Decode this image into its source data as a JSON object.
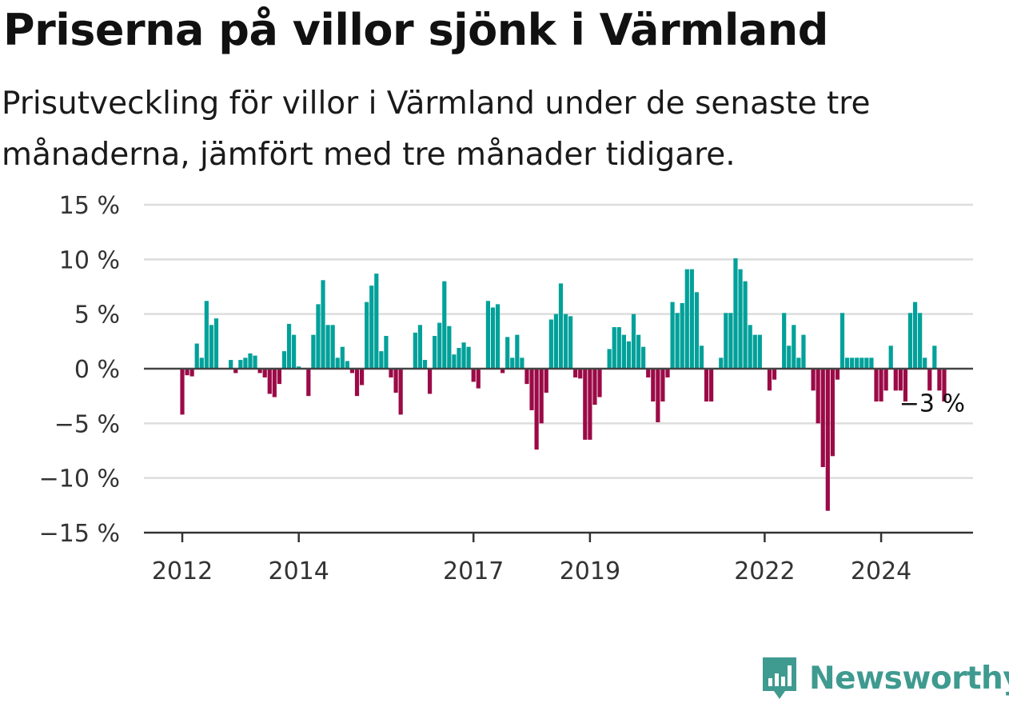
{
  "title": "Priserna på villor sjönk i Värmland",
  "subtitle": "Prisutveckling för villor i Värmland under de senaste tre månaderna, jämfört med tre månader tidigare.",
  "brand": {
    "name": "Newsworthy",
    "icon": "newsworthy-logo-icon",
    "color": "#3f9a90"
  },
  "chart_data": {
    "type": "bar",
    "ylim": [
      -15,
      15
    ],
    "yticks": [
      15,
      10,
      5,
      0,
      -5,
      -10,
      -15
    ],
    "ytick_labels": [
      "15 %",
      "10 %",
      "5 %",
      "0 %",
      "−5 %",
      "−10 %",
      "−15 %"
    ],
    "xticks": [
      {
        "label": "2012",
        "index": 0
      },
      {
        "label": "2014",
        "index": 24
      },
      {
        "label": "2017",
        "index": 60
      },
      {
        "label": "2019",
        "index": 84
      },
      {
        "label": "2022",
        "index": 120
      },
      {
        "label": "2024",
        "index": 144
      }
    ],
    "start": "2012-01",
    "frequency": "monthly",
    "colors": {
      "positive": "#00a19a",
      "negative": "#9b0a46",
      "zero_line": "#444444",
      "grid": "#dddddd"
    },
    "grid": true,
    "annotation": {
      "label": "−3 %",
      "index": 155
    },
    "values": [
      -4.2,
      -0.6,
      -0.7,
      2.3,
      1.0,
      6.2,
      4.0,
      4.6,
      0,
      0,
      0.8,
      -0.4,
      0.8,
      1.0,
      1.4,
      1.2,
      -0.4,
      -0.8,
      -2.3,
      -2.6,
      -1.4,
      1.6,
      4.1,
      3.1,
      0.2,
      0,
      -2.5,
      3.1,
      5.9,
      8.1,
      4.0,
      4.0,
      1.0,
      2.0,
      0.7,
      -0.4,
      -2.5,
      -1.5,
      6.1,
      7.6,
      8.7,
      1.6,
      3.0,
      -0.8,
      -2.2,
      -4.2,
      0,
      0,
      3.3,
      4.0,
      0.8,
      -2.3,
      3.0,
      4.2,
      8.0,
      3.9,
      1.3,
      1.9,
      2.4,
      2.0,
      -1.2,
      -1.8,
      0,
      6.2,
      5.6,
      5.9,
      -0.4,
      2.9,
      1.0,
      3.1,
      1.0,
      -1.4,
      -3.8,
      -7.4,
      -5.0,
      -2.2,
      4.5,
      5.0,
      7.8,
      5.0,
      4.8,
      -0.8,
      -0.9,
      -6.5,
      -6.5,
      -3.3,
      -2.6,
      0,
      1.8,
      3.8,
      3.8,
      3.1,
      2.5,
      5.0,
      3.1,
      2.0,
      -0.8,
      -3.0,
      -4.9,
      -3.0,
      -0.8,
      6.1,
      5.1,
      6.0,
      9.1,
      9.1,
      7.0,
      2.1,
      -3.0,
      -3.0,
      0,
      1.0,
      5.1,
      5.1,
      10.1,
      9.1,
      8.0,
      4.0,
      3.1,
      3.1,
      0,
      -2.0,
      -1.0,
      0,
      5.1,
      2.1,
      4.0,
      1.0,
      3.1,
      0,
      -2.0,
      -5.0,
      -9.0,
      -13.0,
      -8.0,
      -1.0,
      5.1,
      1.0,
      1.0,
      1.0,
      1.0,
      1.0,
      1.0,
      -3.0,
      -3.0,
      -2.0,
      2.1,
      -2.0,
      -2.0,
      -3.0,
      5.1,
      6.1,
      5.1,
      1.0,
      -2.0,
      2.1,
      -2.0,
      -3.0
    ]
  }
}
